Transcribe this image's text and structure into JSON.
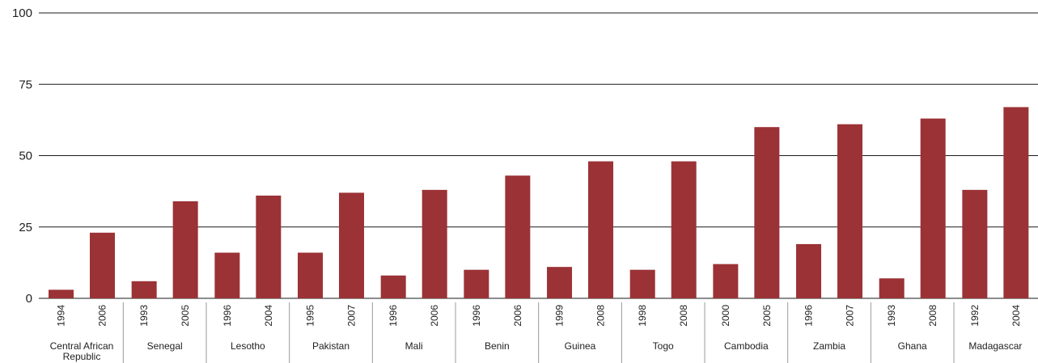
{
  "chart_data": {
    "type": "bar",
    "ylim": [
      0,
      100
    ],
    "yticks": [
      0,
      25,
      50,
      75,
      100
    ],
    "grid": true,
    "bar_color": "#9b3236",
    "groups": [
      {
        "country": "Central African Republic",
        "bars": [
          {
            "year": "1994",
            "value": 3
          },
          {
            "year": "2006",
            "value": 23
          }
        ]
      },
      {
        "country": "Senegal",
        "bars": [
          {
            "year": "1993",
            "value": 6
          },
          {
            "year": "2005",
            "value": 34
          }
        ]
      },
      {
        "country": "Lesotho",
        "bars": [
          {
            "year": "1996",
            "value": 16
          },
          {
            "year": "2004",
            "value": 36
          }
        ]
      },
      {
        "country": "Pakistan",
        "bars": [
          {
            "year": "1995",
            "value": 16
          },
          {
            "year": "2007",
            "value": 37
          }
        ]
      },
      {
        "country": "Mali",
        "bars": [
          {
            "year": "1996",
            "value": 8
          },
          {
            "year": "2006",
            "value": 38
          }
        ]
      },
      {
        "country": "Benin",
        "bars": [
          {
            "year": "1996",
            "value": 10
          },
          {
            "year": "2006",
            "value": 43
          }
        ]
      },
      {
        "country": "Guinea",
        "bars": [
          {
            "year": "1999",
            "value": 11
          },
          {
            "year": "2008",
            "value": 48
          }
        ]
      },
      {
        "country": "Togo",
        "bars": [
          {
            "year": "1998",
            "value": 10
          },
          {
            "year": "2008",
            "value": 48
          }
        ]
      },
      {
        "country": "Cambodia",
        "bars": [
          {
            "year": "2000",
            "value": 12
          },
          {
            "year": "2005",
            "value": 60
          }
        ]
      },
      {
        "country": "Zambia",
        "bars": [
          {
            "year": "1996",
            "value": 19
          },
          {
            "year": "2007",
            "value": 61
          }
        ]
      },
      {
        "country": "Ghana",
        "bars": [
          {
            "year": "1993",
            "value": 7
          },
          {
            "year": "2008",
            "value": 63
          }
        ]
      },
      {
        "country": "Madagascar",
        "bars": [
          {
            "year": "1992",
            "value": 38
          },
          {
            "year": "2004",
            "value": 67
          }
        ]
      }
    ]
  }
}
